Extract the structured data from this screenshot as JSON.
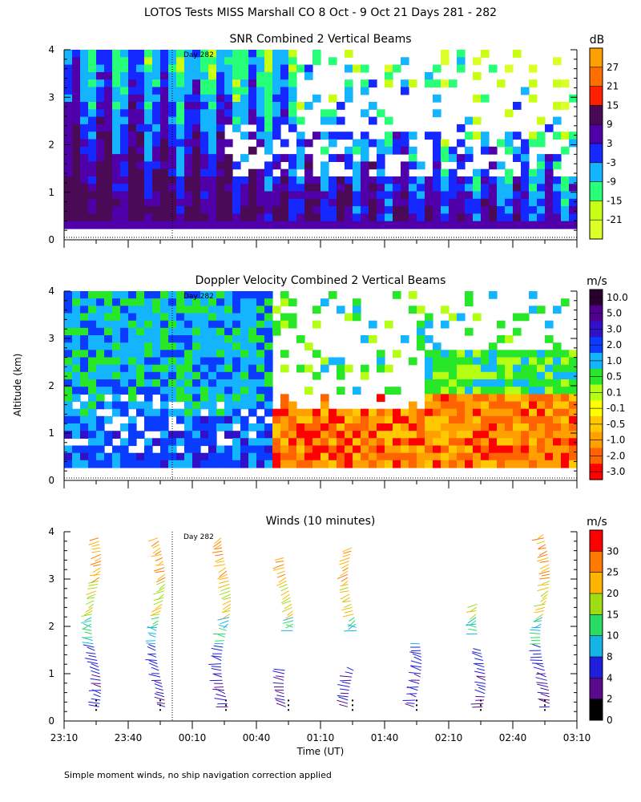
{
  "figure_title": "LOTOS Tests MISS Marshall CO   8 Oct -  9 Oct 21 Days 281 - 282",
  "footnote": "Simple moment winds, no ship navigation correction applied",
  "y_axis_label": "Altitude (km)",
  "x_axis_label": "Time (UT)",
  "day_marker": "Day 282",
  "chart_data": [
    {
      "type": "heatmap",
      "title": "SNR Combined 2 Vertical Beams",
      "unit": "dB",
      "xlabel": "",
      "ylabel": "Altitude (km)",
      "ylim": [
        0,
        4
      ],
      "yticks": [
        0,
        1,
        2,
        3,
        4
      ],
      "colorbar": {
        "ticks": [
          "27",
          "21",
          "15",
          "9",
          "3",
          "-3",
          "-9",
          "-15",
          "-21"
        ],
        "colors": [
          "#ffa000",
          "#ff7000",
          "#ff2000",
          "#4a0a55",
          "#5000a8",
          "#1428ff",
          "#14b4ff",
          "#28ff78",
          "#c8ff14",
          "#dcff28"
        ]
      }
    },
    {
      "type": "heatmap",
      "title": "Doppler Velocity Combined 2 Vertical Beams",
      "unit": "m/s",
      "xlabel": "",
      "ylabel": "Altitude (km)",
      "ylim": [
        0,
        4
      ],
      "yticks": [
        0,
        1,
        2,
        3,
        4
      ],
      "colorbar": {
        "ticks": [
          "10.0",
          "5.0",
          "3.0",
          "2.0",
          "1.0",
          "0.5",
          "0.1",
          "-0.1",
          "-0.5",
          "-1.0",
          "-2.0",
          "-3.0"
        ],
        "colors": [
          "#2a0030",
          "#500090",
          "#3010c8",
          "#0a3cff",
          "#14b4ff",
          "#28e628",
          "#b4ff14",
          "#ffff00",
          "#ffc800",
          "#ffa000",
          "#ff6400",
          "#ff0000"
        ]
      }
    },
    {
      "type": "scatter",
      "title": "Winds (10 minutes)",
      "unit": "m/s",
      "xlabel": "Time (UT)",
      "ylabel": "Altitude (km)",
      "ylim": [
        0,
        4
      ],
      "yticks": [
        0,
        1,
        2,
        3,
        4
      ],
      "x_ticklabels": [
        "23:10",
        "23:40",
        "00:10",
        "00:40",
        "01:10",
        "01:40",
        "02:10",
        "02:40",
        "03:10"
      ],
      "colorbar": {
        "ticks": [
          "30",
          "25",
          "20",
          "15",
          "10",
          "8",
          "4",
          "2",
          "0"
        ],
        "colors": [
          "#ff0000",
          "#ff7800",
          "#ffb400",
          "#a0dc14",
          "#28dc64",
          "#14b4e6",
          "#1e1edc",
          "#5a0a8c",
          "#000000"
        ]
      },
      "profile_times": [
        "23:25",
        "23:55",
        "00:25",
        "00:55",
        "01:25",
        "01:55",
        "02:25",
        "02:55"
      ]
    }
  ]
}
